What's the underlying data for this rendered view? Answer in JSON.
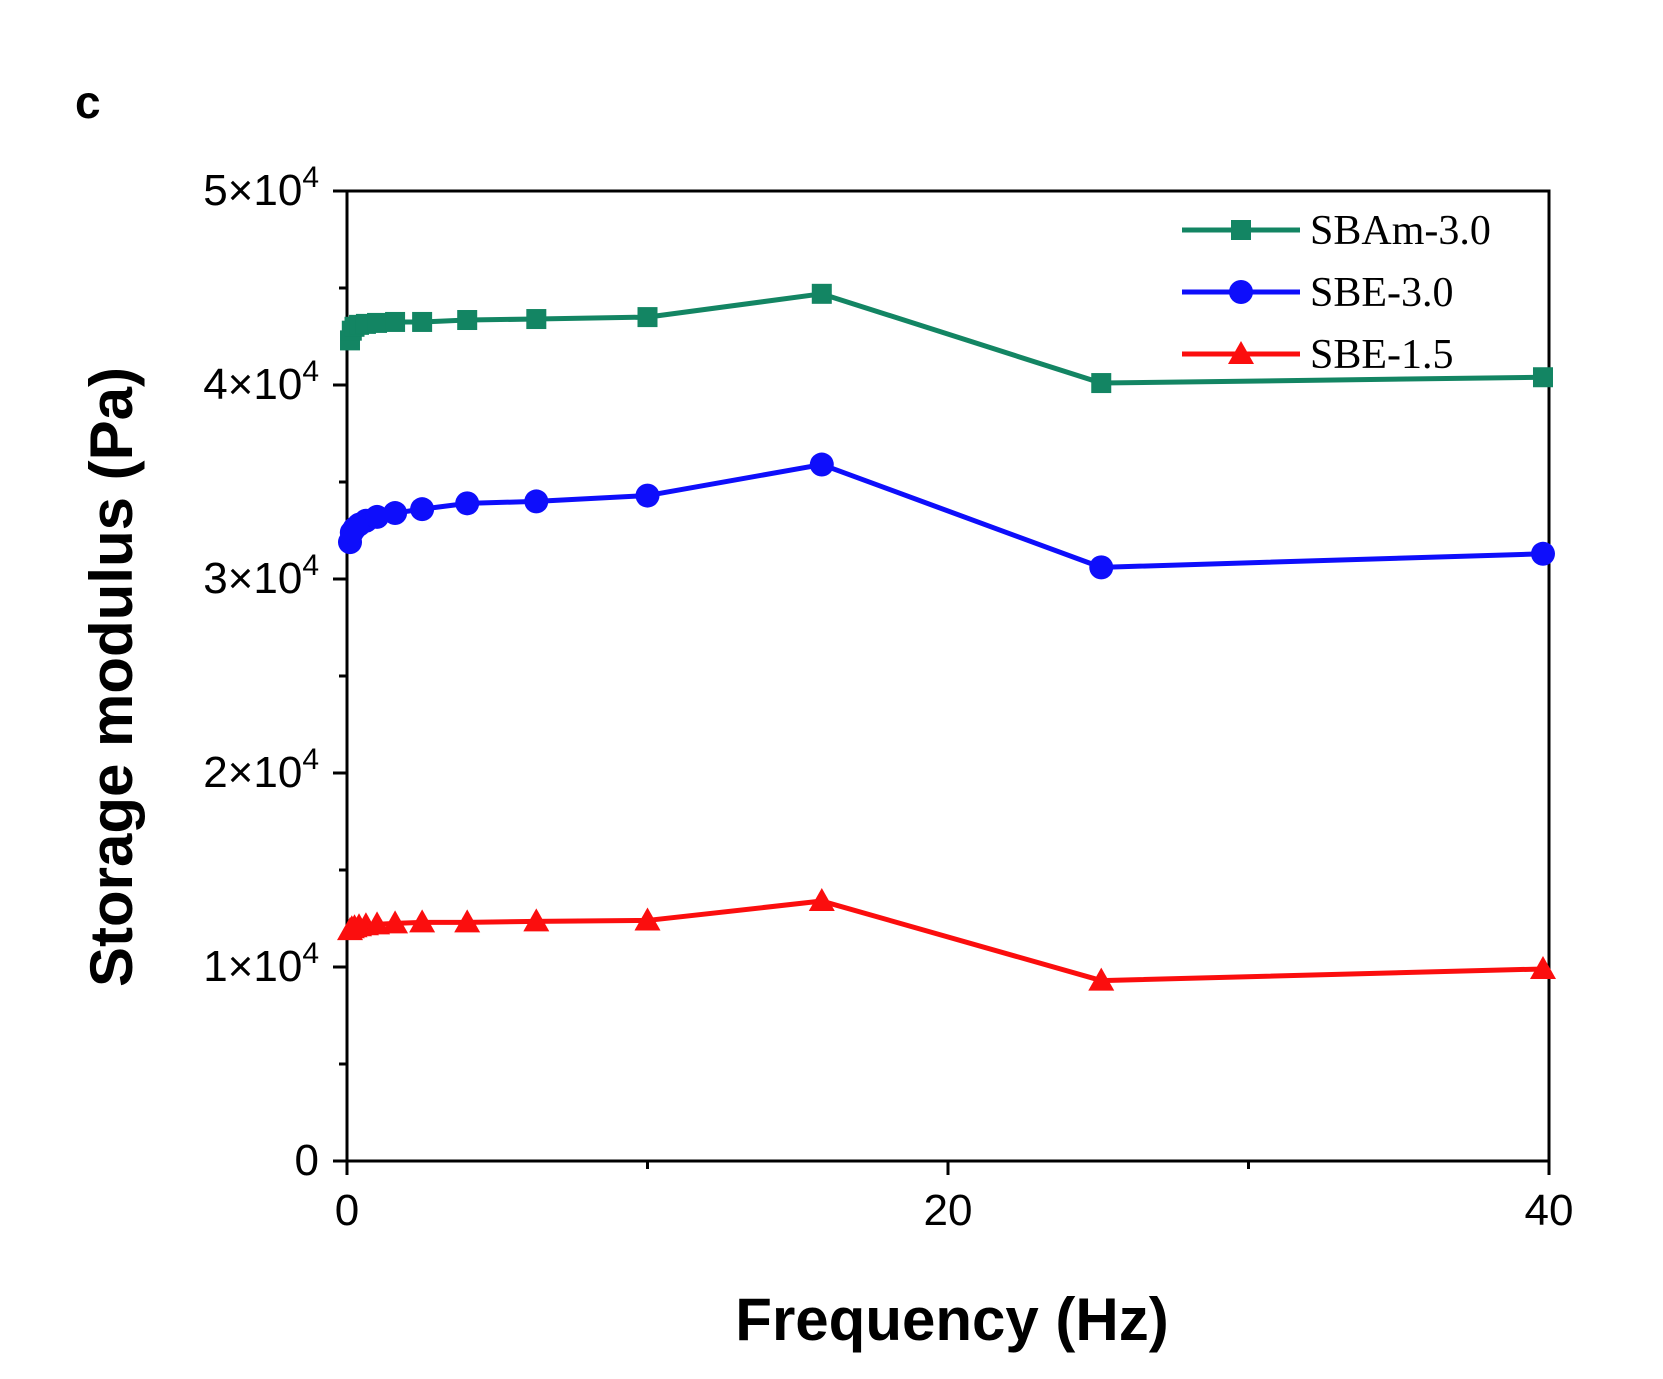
{
  "panel_label": "c",
  "chart_data": {
    "type": "line",
    "title": "",
    "xlabel": "Frequency (Hz)",
    "ylabel": "Storage modulus (Pa)",
    "xlim": [
      0,
      40
    ],
    "ylim": [
      0,
      50000
    ],
    "grid": false,
    "legend_position": "top-right",
    "x_ticks": [
      {
        "value": 0,
        "label": "0"
      },
      {
        "value": 20,
        "label": "20"
      },
      {
        "value": 40,
        "label": "40"
      }
    ],
    "y_ticks": [
      {
        "value": 0,
        "label": "0"
      },
      {
        "value": 10000,
        "mantissa": "1×10",
        "exp": "4"
      },
      {
        "value": 20000,
        "mantissa": "2×10",
        "exp": "4"
      },
      {
        "value": 30000,
        "mantissa": "3×10",
        "exp": "4"
      },
      {
        "value": 40000,
        "mantissa": "4×10",
        "exp": "4"
      },
      {
        "value": 50000,
        "mantissa": "5×10",
        "exp": "4"
      }
    ],
    "x": [
      0.1,
      0.16,
      0.25,
      0.4,
      0.63,
      1.0,
      1.6,
      2.5,
      4.0,
      6.3,
      10.0,
      15.8,
      25.1,
      39.8
    ],
    "series": [
      {
        "name": "SBAm-3.0",
        "color": "#138563",
        "marker": "square",
        "values": [
          42300,
          42800,
          43000,
          43100,
          43150,
          43200,
          43250,
          43250,
          43350,
          43400,
          43500,
          44700,
          40100,
          40400
        ]
      },
      {
        "name": "SBE-3.0",
        "color": "#0e0efb",
        "marker": "circle",
        "values": [
          31900,
          32400,
          32600,
          32800,
          33000,
          33200,
          33400,
          33600,
          33900,
          34000,
          34300,
          35900,
          30600,
          31300
        ]
      },
      {
        "name": "SBE-1.5",
        "color": "#fb0e0e",
        "marker": "triangle",
        "values": [
          11900,
          12000,
          12050,
          12100,
          12150,
          12200,
          12250,
          12300,
          12300,
          12350,
          12400,
          13400,
          9300,
          9900
        ]
      }
    ]
  }
}
